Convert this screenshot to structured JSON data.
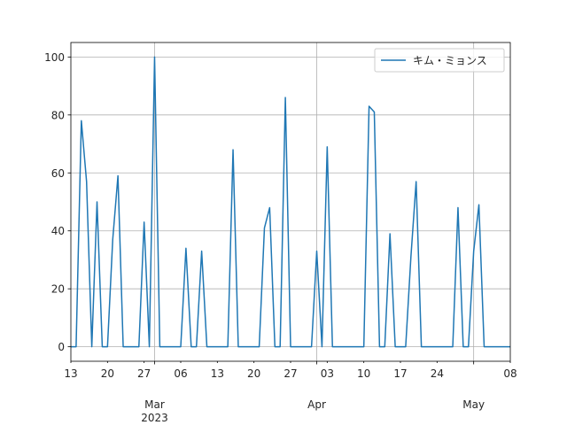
{
  "chart_data": {
    "type": "line",
    "title": "",
    "xlabel": "",
    "ylabel": "",
    "xlim": [
      "2023-02-13",
      "2023-05-08"
    ],
    "ylim": [
      -5,
      105
    ],
    "grid": true,
    "legend_position": "top-right",
    "colors": {
      "series": "#1f77b4",
      "grid": "#b0b0b0",
      "axis": "#000000"
    },
    "y_ticks": [
      0,
      20,
      40,
      60,
      80,
      100
    ],
    "x_ticks": [
      {
        "date": "2023-02-13",
        "label": "13",
        "sub": ""
      },
      {
        "date": "2023-02-20",
        "label": "20",
        "sub": ""
      },
      {
        "date": "2023-02-27",
        "label": "27",
        "sub": ""
      },
      {
        "date": "2023-03-01",
        "label": "Mar",
        "sub": "2023",
        "major": true
      },
      {
        "date": "2023-03-06",
        "label": "06",
        "sub": ""
      },
      {
        "date": "2023-03-13",
        "label": "13",
        "sub": ""
      },
      {
        "date": "2023-03-20",
        "label": "20",
        "sub": ""
      },
      {
        "date": "2023-03-27",
        "label": "27",
        "sub": ""
      },
      {
        "date": "2023-04-01",
        "label": "Apr",
        "sub": "",
        "major": true
      },
      {
        "date": "2023-04-03",
        "label": "03",
        "sub": ""
      },
      {
        "date": "2023-04-10",
        "label": "10",
        "sub": ""
      },
      {
        "date": "2023-04-17",
        "label": "17",
        "sub": ""
      },
      {
        "date": "2023-04-24",
        "label": "24",
        "sub": ""
      },
      {
        "date": "2023-05-01",
        "label": "May",
        "sub": "",
        "major": true
      },
      {
        "date": "2023-05-08",
        "label": "08",
        "sub": ""
      }
    ],
    "series": [
      {
        "name": "キム・ミョンス",
        "x": [
          "2023-02-13",
          "2023-02-14",
          "2023-02-15",
          "2023-02-16",
          "2023-02-17",
          "2023-02-18",
          "2023-02-19",
          "2023-02-20",
          "2023-02-21",
          "2023-02-22",
          "2023-02-23",
          "2023-02-24",
          "2023-02-25",
          "2023-02-26",
          "2023-02-27",
          "2023-02-28",
          "2023-03-01",
          "2023-03-02",
          "2023-03-03",
          "2023-03-04",
          "2023-03-05",
          "2023-03-06",
          "2023-03-07",
          "2023-03-08",
          "2023-03-09",
          "2023-03-10",
          "2023-03-11",
          "2023-03-12",
          "2023-03-13",
          "2023-03-14",
          "2023-03-15",
          "2023-03-16",
          "2023-03-17",
          "2023-03-18",
          "2023-03-19",
          "2023-03-20",
          "2023-03-21",
          "2023-03-22",
          "2023-03-23",
          "2023-03-24",
          "2023-03-25",
          "2023-03-26",
          "2023-03-27",
          "2023-03-28",
          "2023-03-29",
          "2023-03-30",
          "2023-03-31",
          "2023-04-01",
          "2023-04-02",
          "2023-04-03",
          "2023-04-04",
          "2023-04-05",
          "2023-04-06",
          "2023-04-07",
          "2023-04-08",
          "2023-04-09",
          "2023-04-10",
          "2023-04-11",
          "2023-04-12",
          "2023-04-13",
          "2023-04-14",
          "2023-04-15",
          "2023-04-16",
          "2023-04-17",
          "2023-04-18",
          "2023-04-19",
          "2023-04-20",
          "2023-04-21",
          "2023-04-22",
          "2023-04-23",
          "2023-04-24",
          "2023-04-25",
          "2023-04-26",
          "2023-04-27",
          "2023-04-28",
          "2023-04-29",
          "2023-04-30",
          "2023-05-01",
          "2023-05-02",
          "2023-05-03",
          "2023-05-04",
          "2023-05-05",
          "2023-05-06",
          "2023-05-07",
          "2023-05-08"
        ],
        "values": [
          0,
          0,
          78,
          57,
          0,
          50,
          0,
          0,
          37,
          59,
          0,
          0,
          0,
          0,
          43,
          0,
          100,
          0,
          0,
          0,
          0,
          0,
          34,
          0,
          0,
          33,
          0,
          0,
          0,
          0,
          0,
          68,
          0,
          0,
          0,
          0,
          0,
          41,
          48,
          0,
          0,
          86,
          0,
          0,
          0,
          0,
          0,
          33,
          0,
          69,
          0,
          0,
          0,
          0,
          0,
          0,
          0,
          83,
          81,
          0,
          0,
          39,
          0,
          0,
          0,
          31,
          57,
          0,
          0,
          0,
          0,
          0,
          0,
          0,
          48,
          0,
          0,
          33,
          49,
          0,
          0,
          0,
          0,
          0,
          0
        ]
      }
    ]
  }
}
